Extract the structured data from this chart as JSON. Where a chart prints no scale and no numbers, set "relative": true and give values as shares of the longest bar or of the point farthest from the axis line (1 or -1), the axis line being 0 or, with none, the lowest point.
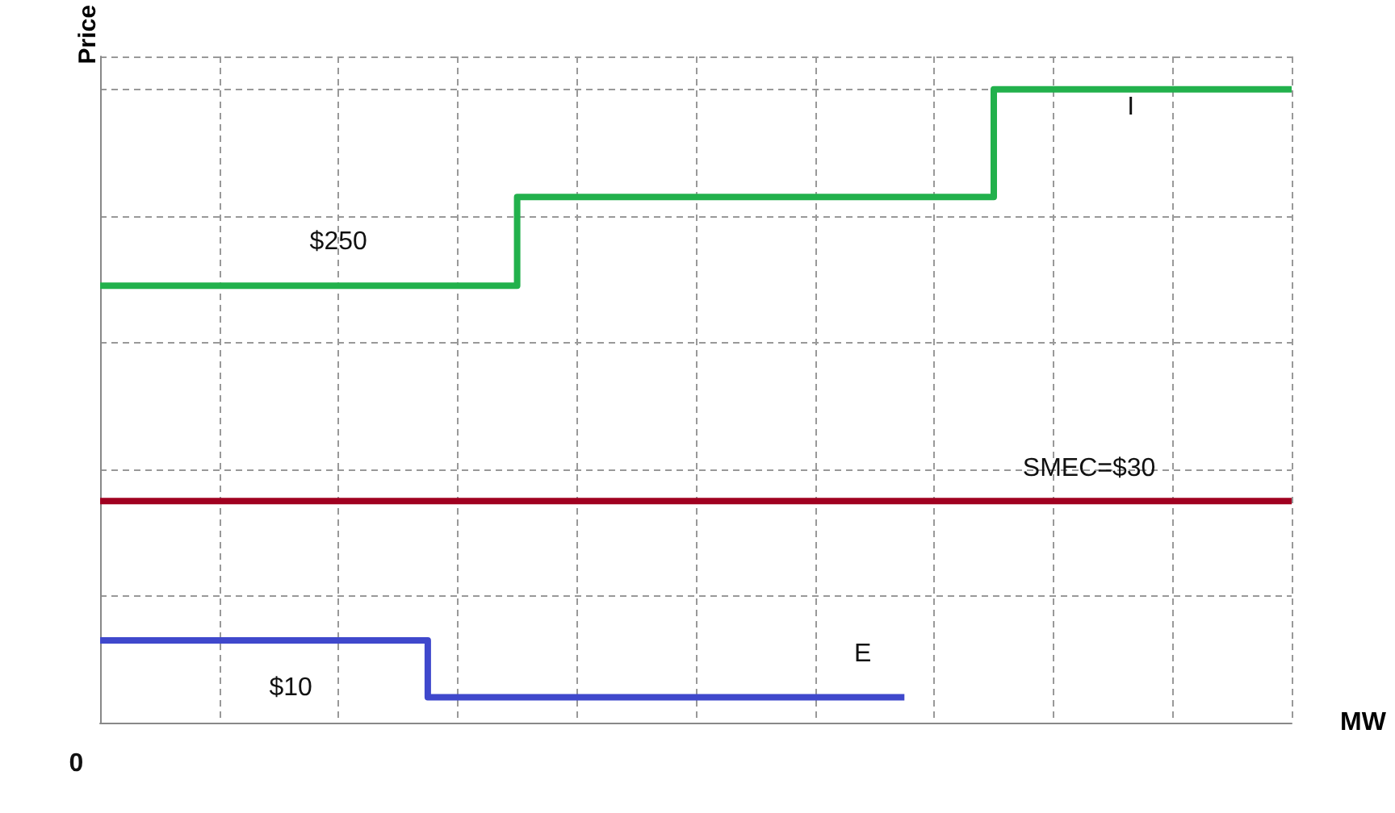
{
  "chart_data": {
    "type": "step",
    "relative": true,
    "xlabel": "MW",
    "ylabel": "Price",
    "categories": [
      null,
      null,
      null,
      null,
      null,
      null,
      null,
      null,
      null,
      null,
      null,
      null,
      null,
      null,
      null,
      null,
      null,
      null,
      null,
      null,
      null,
      null,
      null,
      null,
      null,
      null,
      null,
      null,
      null,
      null,
      null,
      null,
      null,
      null,
      null,
      null,
      null,
      null,
      null,
      null,
      null
    ],
    "series": [
      {
        "color": "#22b14c",
        "values": [
          0.69,
          0.69,
          0.69,
          0.69,
          0.69,
          0.69,
          0.69,
          0.69,
          0.69,
          0.69,
          0.69,
          0.69,
          0.69,
          0.69,
          0.69,
          0.83,
          0.83,
          0.83,
          0.83,
          0.83,
          0.83,
          0.83,
          0.83,
          0.83,
          0.83,
          0.83,
          0.83,
          0.83,
          0.83,
          0.83,
          0.83,
          1,
          1,
          1,
          1,
          1,
          1,
          1,
          1,
          1,
          1
        ]
      },
      {
        "type": "line",
        "color": "#a00020",
        "values": [
          0.35,
          0.35,
          0.35,
          0.35,
          0.35,
          0.35,
          0.35,
          0.35,
          0.35,
          0.35,
          0.35,
          0.35,
          0.35,
          0.35,
          0.35,
          0.35,
          0.35,
          0.35,
          0.35,
          0.35,
          0.35,
          0.35,
          0.35,
          0.35,
          0.35,
          0.35,
          0.35,
          0.35,
          0.35,
          0.35,
          0.35,
          0.35,
          0.35,
          0.35,
          0.35,
          0.35,
          0.35,
          0.35,
          0.35,
          0.35,
          0.35
        ]
      },
      {
        "color": "#3f48cc",
        "values": [
          0.13,
          0.13,
          0.13,
          0.13,
          0.13,
          0.13,
          0.13,
          0.13,
          0.13,
          0.13,
          0.13,
          0.13,
          0.04,
          0.04,
          0.04,
          0.04,
          0.04,
          0.04,
          0.04,
          0.04,
          0.04,
          0.04,
          0.04,
          0.04,
          0.04,
          0.04,
          0.04,
          0.04,
          null,
          null,
          null,
          null,
          null,
          null,
          null,
          null,
          null,
          null,
          null,
          null,
          null
        ]
      }
    ],
    "annotations": [
      "$250",
      "I",
      "SMEC=$30",
      "E",
      "$10",
      "0"
    ],
    "grid": true,
    "marker": "none",
    "line_style": "solid"
  }
}
